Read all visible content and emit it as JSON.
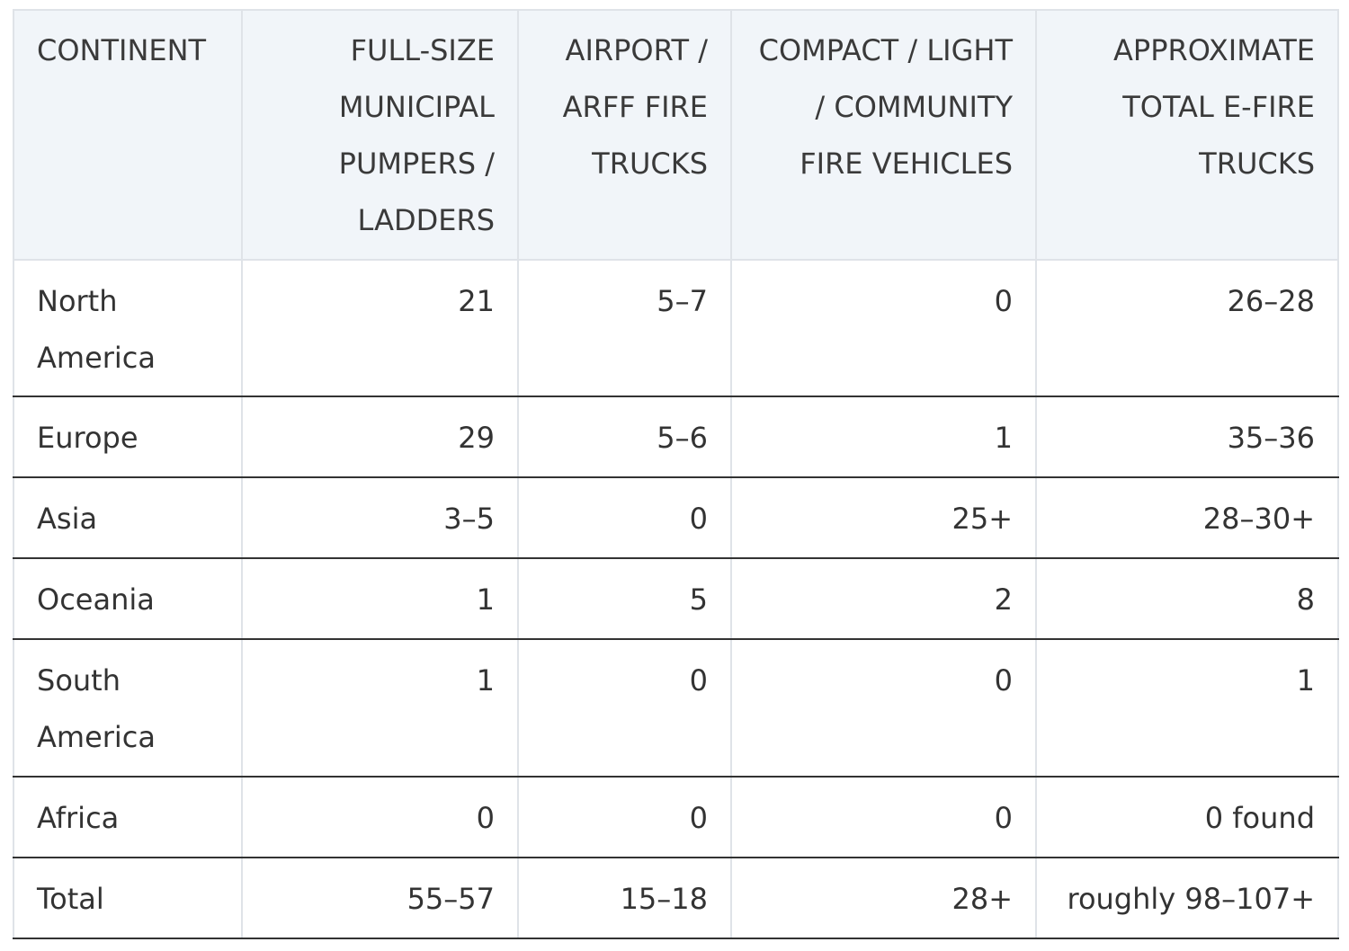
{
  "table": {
    "header": [
      "CONTINENT",
      "FULL-SIZE MUNICIPAL PUMPERS / LADDERS",
      "AIRPORT / ARFF FIRE TRUCKS",
      "COMPACT / LIGHT / COMMUNITY FIRE VEHICLES",
      "APPROXIMATE TOTAL E-FIRE TRUCKS"
    ],
    "rows": [
      [
        "North America",
        "21",
        "5–7",
        "0",
        "26–28"
      ],
      [
        "Europe",
        "29",
        "5–6",
        "1",
        "35–36"
      ],
      [
        "Asia",
        "3–5",
        "0",
        "25+",
        "28–30+"
      ],
      [
        "Oceania",
        "1",
        "5",
        "2",
        "8"
      ],
      [
        "South America",
        "1",
        "0",
        "0",
        "1"
      ],
      [
        "Africa",
        "0",
        "0",
        "0",
        "0 found"
      ],
      [
        "Total",
        "55–57",
        "15–18",
        "28+",
        "roughly 98–107+"
      ]
    ]
  }
}
